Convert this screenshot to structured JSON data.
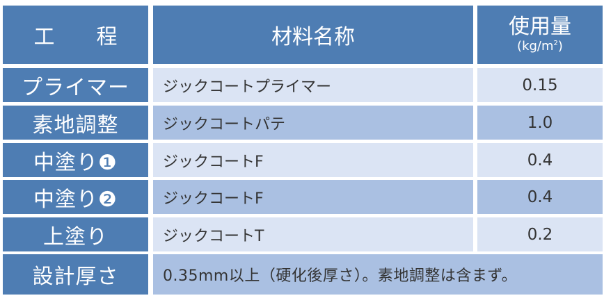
{
  "header": {
    "process": "工　　程",
    "material": "材料名称",
    "usage": "使用量",
    "usage_unit": "(kg/m",
    "usage_unit_sup": "2",
    "usage_unit_close": ")"
  },
  "rows": [
    {
      "process": "プライマー",
      "material": "ジックコートプライマー",
      "amount": "0.15"
    },
    {
      "process": "素地調整",
      "material": "ジックコートパテ",
      "amount": "1.0"
    },
    {
      "process": "中塗り❶",
      "material": "ジックコートF",
      "amount": "0.4"
    },
    {
      "process": "中塗り❷",
      "material": "ジックコートF",
      "amount": "0.4"
    },
    {
      "process": "上塗り",
      "material": "ジックコートT",
      "amount": "0.2"
    }
  ],
  "footer": {
    "label": "設計厚さ",
    "note": "0.35mm以上（硬化後厚さ）。素地調整は含まず。"
  },
  "colors": {
    "header": "#4e7db3",
    "row_light": "#dbe4f4",
    "row_mid": "#aac0e2"
  }
}
